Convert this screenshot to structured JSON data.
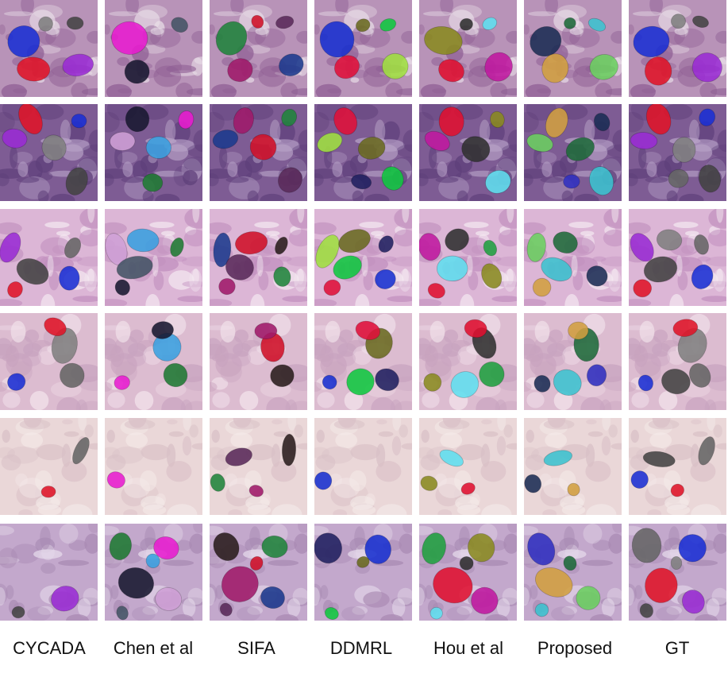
{
  "columns": [
    "CYCADA",
    "Chen et al",
    "SIFA",
    "DDMRL",
    "Hou et al",
    "Proposed",
    "GT"
  ],
  "rows": [
    {
      "bg": "#b893b8",
      "tissue": "#8f5f94",
      "light": "#e9dfe8"
    },
    {
      "bg": "#7e5c94",
      "tissue": "#5e3f7a",
      "light": "#b7a2c7"
    },
    {
      "bg": "#dcb6d6",
      "tissue": "#c18fbe",
      "light": "#f5eaf2"
    },
    {
      "bg": "#dcbcd0",
      "tissue": "#c8a3bf",
      "light": "#f3e3ec"
    },
    {
      "bg": "#ead7d8",
      "tissue": "#d9c0c6",
      "light": "#f5ebea"
    },
    {
      "bg": "#c3a8cc",
      "tissue": "#a889b2",
      "light": "#e7dcec"
    }
  ],
  "nuclei_colors": [
    [
      "#1a2fd4",
      "#e01428",
      "#9a2cd4",
      "#808080",
      "#444",
      "#666"
    ],
    [
      "#e81cd0",
      "#181830",
      "#cfa0d6",
      "#3aa0e0",
      "#445566",
      "#1f7a33"
    ],
    [
      "#20843c",
      "#a01a6a",
      "#1c3a8e",
      "#d01028",
      "#5a2a5a",
      "#2a1d1d"
    ],
    [
      "#1830d0",
      "#e0103a",
      "#a0e040",
      "#6a6a20",
      "#10c840",
      "#202060"
    ],
    [
      "#8a8a20",
      "#e01030",
      "#c018a0",
      "#303030",
      "#60e0f0",
      "#20a040"
    ],
    [
      "#1b2d55",
      "#d2a040",
      "#6bd060",
      "#1e6a3a",
      "#3cc3d0",
      "#3030c0"
    ]
  ]
}
